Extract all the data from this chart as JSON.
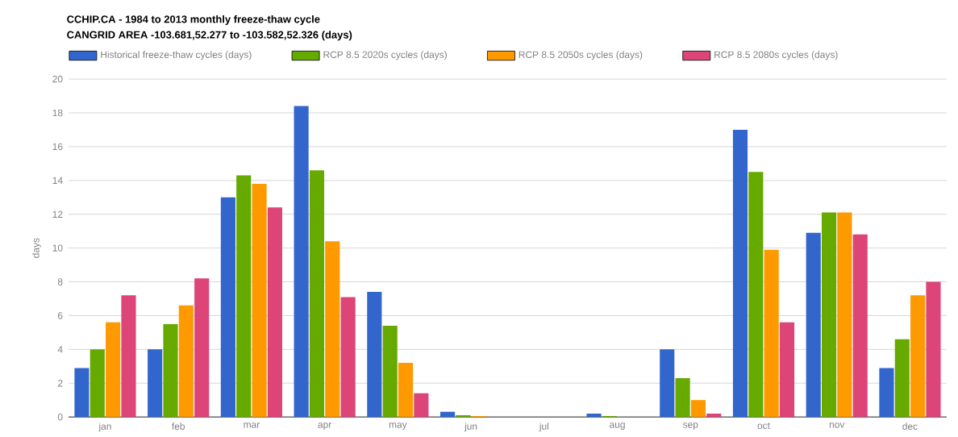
{
  "chart_data": {
    "type": "bar",
    "title": "CCHIP.CA - 1984 to 2013 monthly freeze-thaw cycle",
    "subtitle": "CANGRID AREA -103.681,52.277 to -103.582,52.326 (days)",
    "ylabel": "days",
    "categories": [
      "jan",
      "feb",
      "mar",
      "apr",
      "may",
      "jun",
      "jul",
      "aug",
      "sep",
      "oct",
      "nov",
      "dec"
    ],
    "series": [
      {
        "name": "Historical freeze-thaw cycles (days)",
        "color": "#3366cc",
        "values": [
          2.9,
          4.0,
          13.0,
          18.4,
          7.4,
          0.3,
          0,
          0.2,
          4.0,
          17.0,
          10.9,
          2.9
        ]
      },
      {
        "name": "RCP 8.5 2020s  cycles (days)",
        "color": "#66aa00",
        "values": [
          4.0,
          5.5,
          14.3,
          14.6,
          5.4,
          0.1,
          0,
          0.05,
          2.3,
          14.5,
          12.1,
          4.6
        ]
      },
      {
        "name": "RCP 8.5 2050s  cycles (days)",
        "color": "#ff9900",
        "values": [
          5.6,
          6.6,
          13.8,
          10.4,
          3.2,
          0.05,
          0,
          0,
          1.0,
          9.9,
          12.1,
          7.2
        ]
      },
      {
        "name": "RCP 8.5 2080s  cycles (days)",
        "color": "#dd4477",
        "values": [
          7.2,
          8.2,
          12.4,
          7.1,
          1.4,
          0,
          0,
          0,
          0.2,
          5.6,
          10.8,
          8.0
        ]
      }
    ],
    "ylim": [
      0,
      20
    ],
    "yticks": [
      0,
      2,
      4,
      6,
      8,
      10,
      12,
      14,
      16,
      18,
      20
    ],
    "grid": "y",
    "legend": "top left"
  }
}
